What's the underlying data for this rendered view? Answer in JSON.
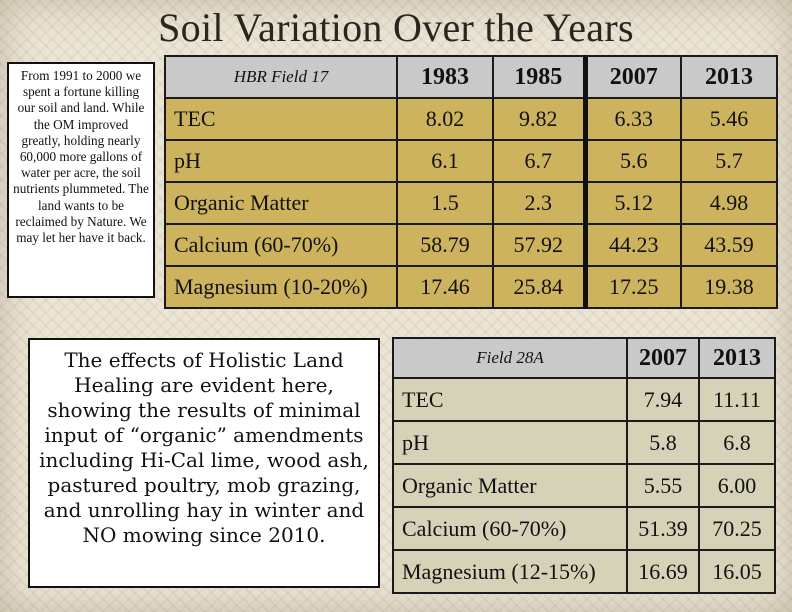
{
  "title": "Soil Variation Over the Years",
  "note_top": "From 1991 to 2000 we spent a fortune killing our soil and land. While the OM improved greatly, holding nearly 60,000 more gallons of water per acre, the soil nutrients plummeted. The land wants to be reclaimed by Nature. We may let her have it back.",
  "note_bottom": "The effects of Holistic Land Healing are evident here, showing the results of minimal input of “organic” amendments including Hi-Cal lime, wood ash, pastured poultry, mob grazing, and unrolling hay in winter and NO mowing since 2010.",
  "table1": {
    "corner": "HBR Field 17",
    "years": [
      "1983",
      "1985",
      "2007",
      "2013"
    ],
    "rows": [
      {
        "label": "TEC",
        "values": [
          "8.02",
          "9.82",
          "6.33",
          "5.46"
        ]
      },
      {
        "label": "pH",
        "values": [
          "6.1",
          "6.7",
          "5.6",
          "5.7"
        ]
      },
      {
        "label": "Organic Matter",
        "values": [
          "1.5",
          "2.3",
          "5.12",
          "4.98"
        ]
      },
      {
        "label": "Calcium (60-70%)",
        "values": [
          "58.79",
          "57.92",
          "44.23",
          "43.59"
        ]
      },
      {
        "label": "Magnesium (10-20%)",
        "values": [
          "17.46",
          "25.84",
          "17.25",
          "19.38"
        ]
      }
    ]
  },
  "table2": {
    "corner": "Field 28A",
    "years": [
      "2007",
      "2013"
    ],
    "rows": [
      {
        "label": "TEC",
        "values": [
          "7.94",
          "11.11"
        ]
      },
      {
        "label": "pH",
        "values": [
          "5.8",
          "6.8"
        ]
      },
      {
        "label": "Organic Matter",
        "values": [
          "5.55",
          "6.00"
        ]
      },
      {
        "label": "Calcium (60-70%)",
        "values": [
          "51.39",
          "70.25"
        ]
      },
      {
        "label": "Magnesium (12-15%)",
        "values": [
          "16.69",
          "16.05"
        ]
      }
    ]
  }
}
